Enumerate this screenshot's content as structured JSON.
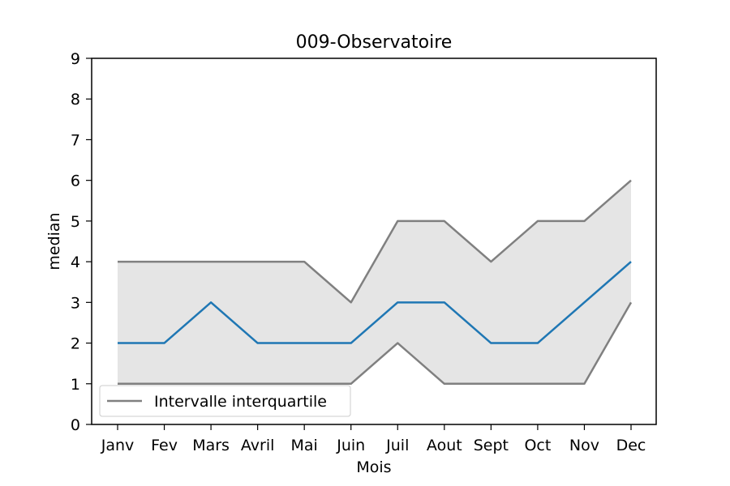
{
  "chart_data": {
    "type": "line",
    "title": "009-Observatoire",
    "xlabel": "Mois",
    "ylabel": "median",
    "ylim": [
      0,
      9
    ],
    "yticks": [
      0,
      1,
      2,
      3,
      4,
      5,
      6,
      7,
      8,
      9
    ],
    "categories": [
      "Janv",
      "Fev",
      "Mars",
      "Avril",
      "Mai",
      "Juin",
      "Juil",
      "Aout",
      "Sept",
      "Oct",
      "Nov",
      "Dec"
    ],
    "series": [
      {
        "role": "median",
        "color": "#1f77b4",
        "values": [
          2,
          2,
          3,
          2,
          2,
          2,
          3,
          3,
          2,
          2,
          3,
          4
        ]
      },
      {
        "role": "upper-quartile",
        "color": "#808080",
        "values": [
          4,
          4,
          4,
          4,
          4,
          3,
          5,
          5,
          4,
          5,
          5,
          6
        ]
      },
      {
        "role": "lower-quartile",
        "color": "#808080",
        "values": [
          1,
          1,
          1,
          1,
          1,
          1,
          2,
          1,
          1,
          1,
          1,
          3
        ]
      }
    ],
    "band_color": "#e5e5e5",
    "grid": false,
    "legend": {
      "placement": "lower-left",
      "entries": [
        {
          "label": "Intervalle interquartile",
          "color": "#808080"
        }
      ]
    }
  }
}
